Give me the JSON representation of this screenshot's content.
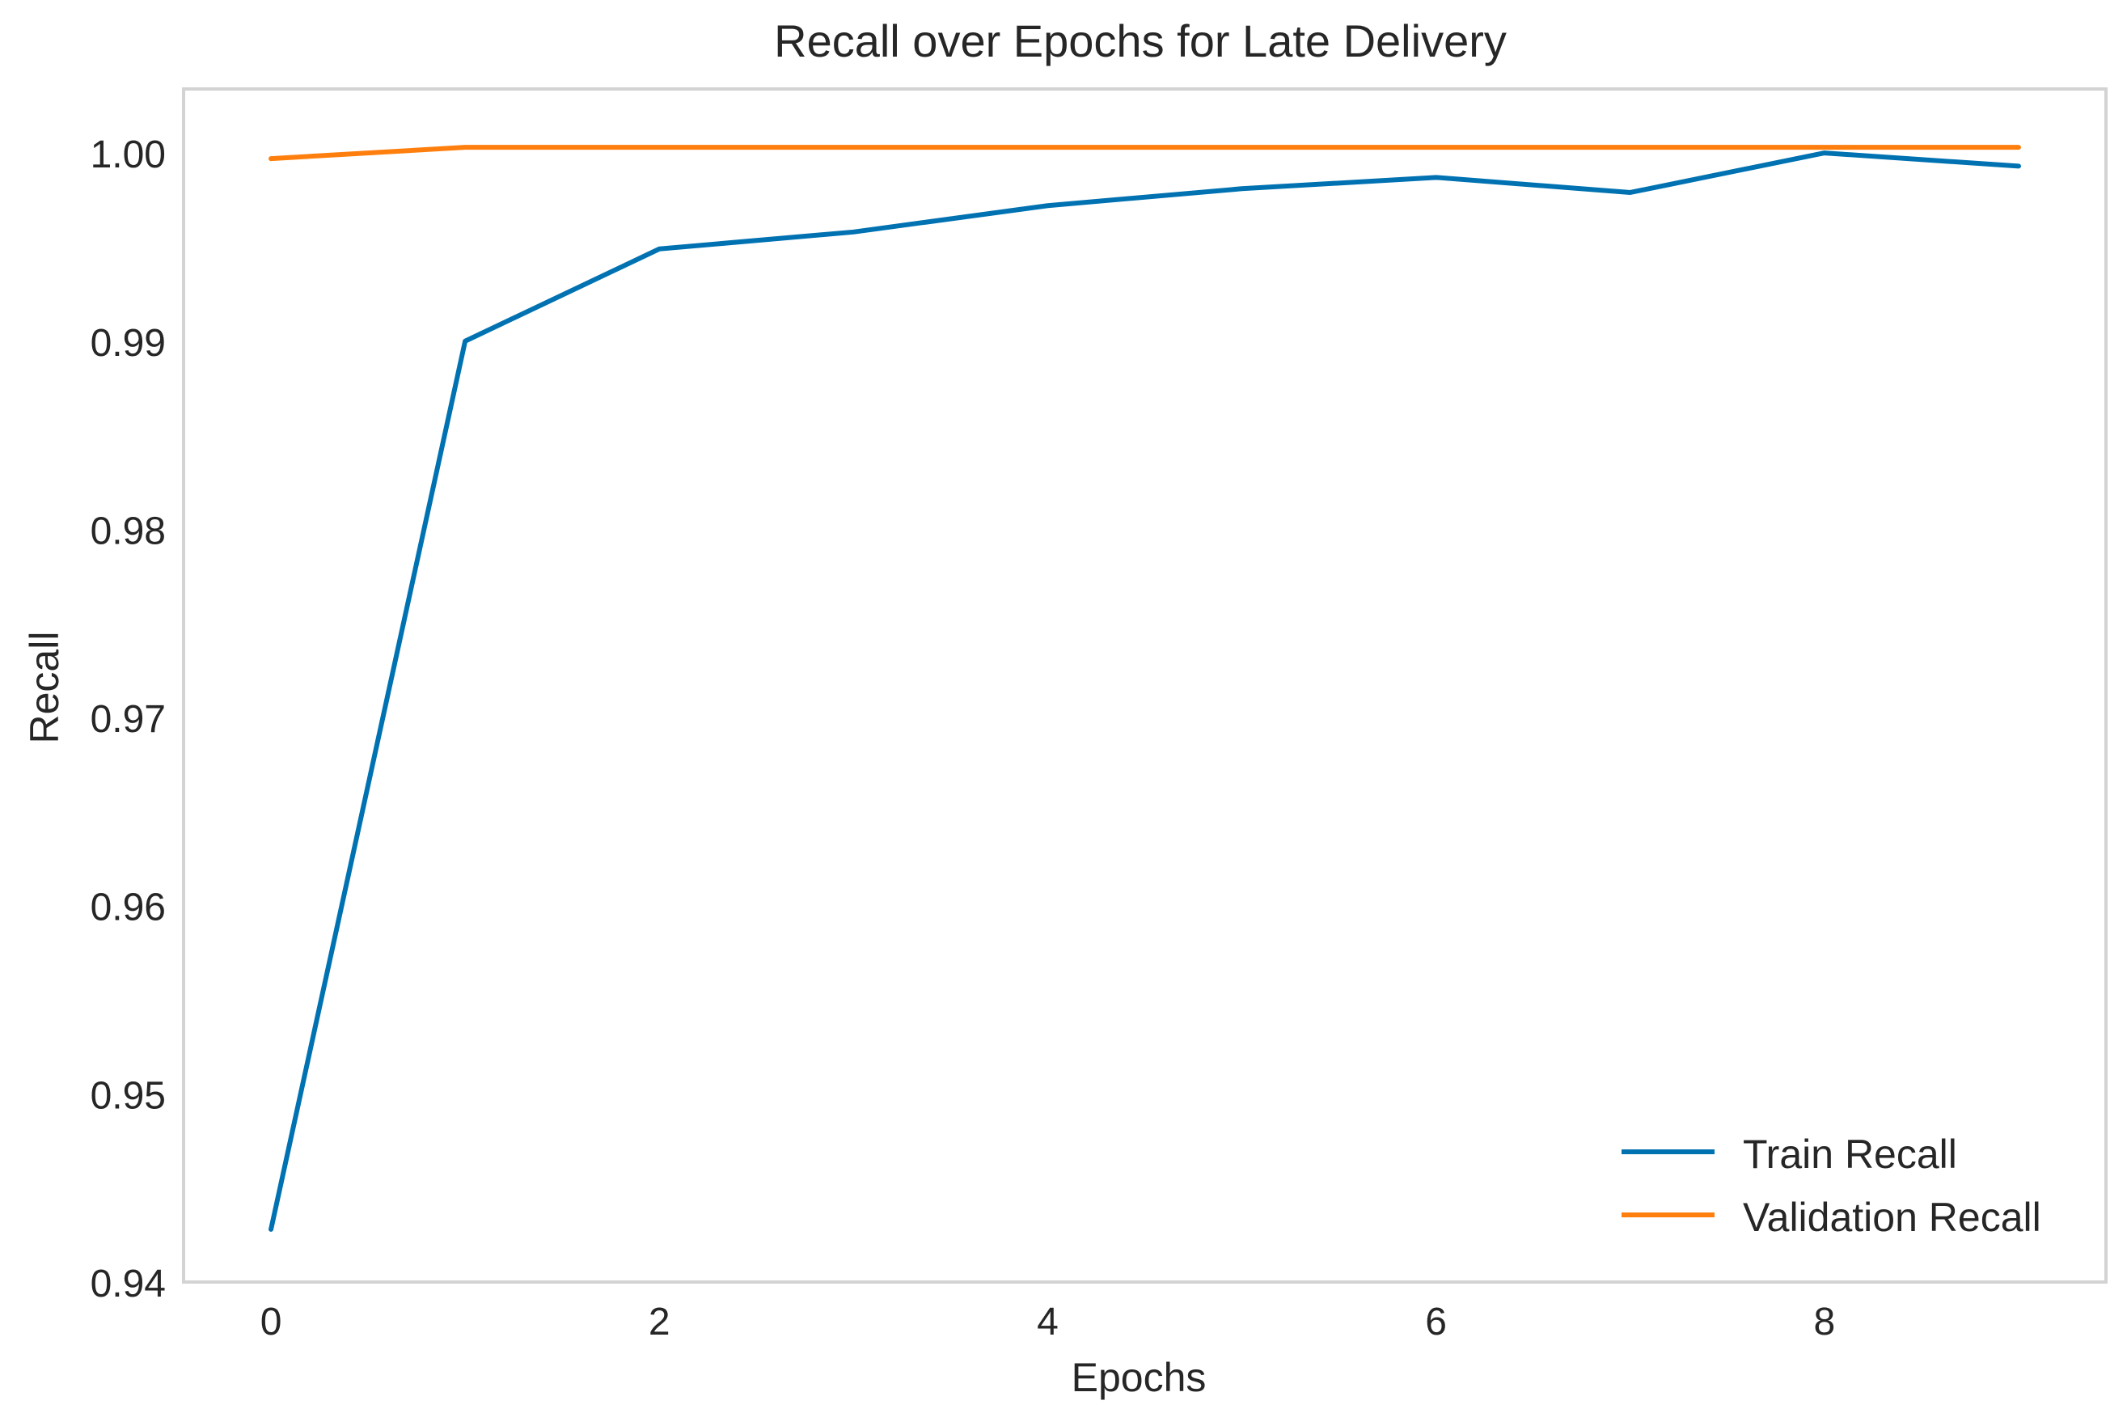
{
  "chart_data": {
    "type": "line",
    "title": "Recall over Epochs for Late Delivery",
    "xlabel": "Epochs",
    "ylabel": "Recall",
    "xlim": [
      -0.45,
      9.45
    ],
    "ylim": [
      0.94,
      1.0034
    ],
    "xticks": [
      0,
      2,
      4,
      6,
      8
    ],
    "xtick_labels": [
      "0",
      "2",
      "4",
      "6",
      "8"
    ],
    "yticks": [
      0.94,
      0.95,
      0.96,
      0.97,
      0.98,
      0.99,
      1.0
    ],
    "ytick_labels": [
      "0.94",
      "0.95",
      "0.96",
      "0.97",
      "0.98",
      "0.99",
      "1.00"
    ],
    "grid": false,
    "legend_position": "lower-right",
    "x": [
      0,
      1,
      2,
      3,
      4,
      5,
      6,
      7,
      8,
      9
    ],
    "series": [
      {
        "name": "Train Recall",
        "color": "#0072B2",
        "values": [
          0.9428,
          0.99,
          0.9949,
          0.9958,
          0.9972,
          0.9981,
          0.9987,
          0.9979,
          1.0,
          0.9993
        ]
      },
      {
        "name": "Validation Recall",
        "color": "#FF7F0E",
        "values": [
          0.9997,
          1.0003,
          1.0003,
          1.0003,
          1.0003,
          1.0003,
          1.0003,
          1.0003,
          1.0003,
          1.0003
        ]
      }
    ]
  }
}
